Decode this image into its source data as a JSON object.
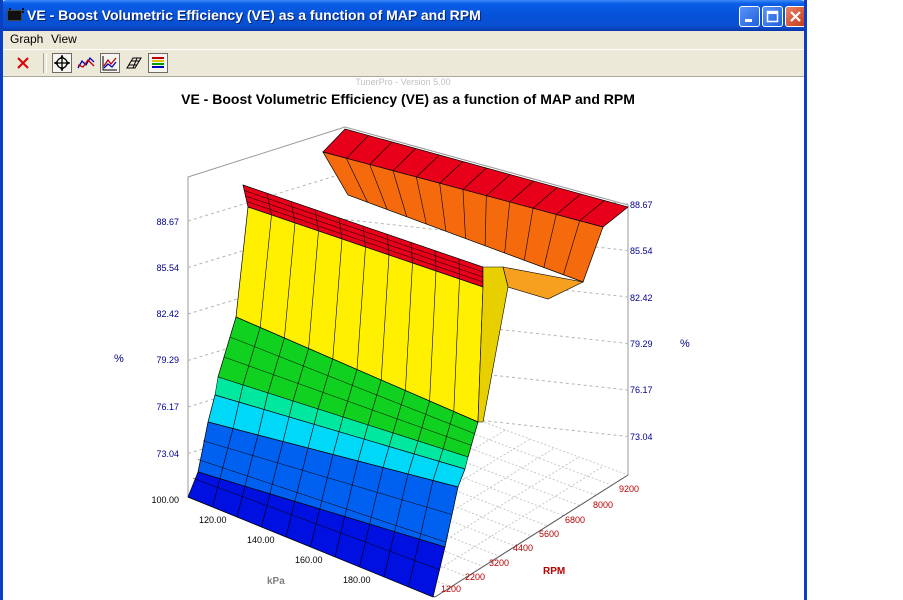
{
  "window": {
    "title": "VE - Boost Volumetric Efficiency (VE) as a function of MAP and RPM",
    "controls": [
      "minimize-icon",
      "maximize-icon",
      "close-icon"
    ]
  },
  "menu": [
    {
      "label": "Graph"
    },
    {
      "label": "View"
    }
  ],
  "toolbar": {
    "buttons": [
      {
        "icon": "close-x-icon",
        "pressed": false
      },
      {
        "icon": "move-crosshair-icon",
        "pressed": true
      },
      {
        "icon": "rotate-graph-icon",
        "pressed": false
      },
      {
        "icon": "line-graph-icon",
        "pressed": true
      },
      {
        "icon": "surface-mesh-icon",
        "pressed": false
      },
      {
        "icon": "color-legend-icon",
        "pressed": true
      }
    ]
  },
  "graph": {
    "watermark": "TunerPro - Version 5.00",
    "title": "VE - Boost Volumetric Efficiency (VE) as a function of MAP and RPM",
    "z_unit": "%",
    "z_ticks": [
      "88.67",
      "85.54",
      "82.42",
      "79.29",
      "76.17",
      "73.04",
      "100.00"
    ],
    "z_ticks_right": [
      "88.67",
      "85.54",
      "82.42",
      "79.29",
      "76.17",
      "73.04"
    ],
    "kpa_axis_label": "kPa",
    "kpa_ticks": [
      "120.00",
      "140.00",
      "160.00",
      "180.00"
    ],
    "rpm_axis_label": "RPM",
    "rpm_ticks": [
      "1200",
      "2200",
      "3200",
      "4400",
      "5600",
      "6800",
      "8000",
      "9200"
    ]
  },
  "colors": {
    "red": "#e8001a",
    "orange": "#f46a0c",
    "yellow": "#fff000",
    "green": "#10d020",
    "teal": "#00e8a0",
    "cyan": "#00d8f8",
    "blue": "#0060f0",
    "darkblue": "#0010e0"
  }
}
